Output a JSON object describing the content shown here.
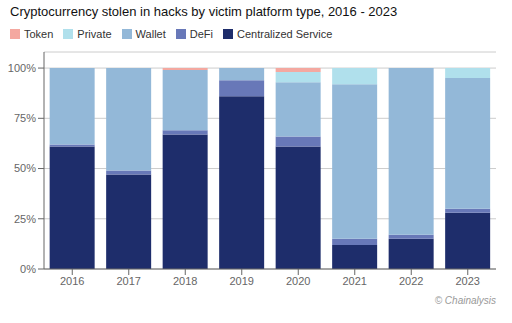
{
  "chart_data": {
    "type": "bar",
    "stacked": true,
    "title": "Cryptocurrency stolen in hacks by victim platform type, 2016 - 2023",
    "categories": [
      "2016",
      "2017",
      "2018",
      "2019",
      "2020",
      "2021",
      "2022",
      "2023"
    ],
    "series": [
      {
        "name": "Centralized Service",
        "color": "#1e2d6b",
        "values": [
          61,
          47,
          67,
          86,
          61,
          12,
          15,
          28
        ]
      },
      {
        "name": "DeFi",
        "color": "#6878b8",
        "values": [
          1,
          2,
          2,
          8,
          5,
          3,
          2,
          2
        ]
      },
      {
        "name": "Wallet",
        "color": "#93b8d8",
        "values": [
          38,
          51,
          30,
          6,
          27,
          77,
          83,
          65
        ]
      },
      {
        "name": "Private",
        "color": "#b0e0ec",
        "values": [
          0,
          0,
          0,
          0,
          5,
          8,
          0,
          5
        ]
      },
      {
        "name": "Token",
        "color": "#f4a8a0",
        "values": [
          0,
          0,
          1,
          0,
          2,
          0,
          0,
          0
        ]
      }
    ],
    "ylim": [
      0,
      108
    ],
    "yticks": [
      {
        "value": 0,
        "label": "0%"
      },
      {
        "value": 25,
        "label": "25%"
      },
      {
        "value": 50,
        "label": "50%"
      },
      {
        "value": 75,
        "label": "75%"
      },
      {
        "value": 100,
        "label": "100%"
      }
    ],
    "grid": true,
    "legend": "upper left",
    "annotations": [
      "© Chainalysis"
    ]
  }
}
